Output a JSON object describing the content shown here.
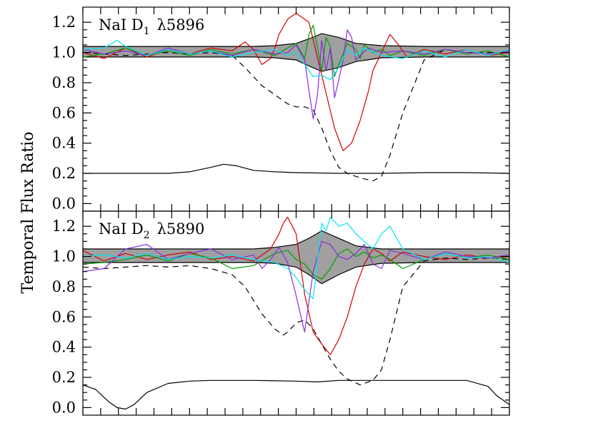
{
  "ylabel": "Temporal Flux Ratio",
  "chart_data": [
    {
      "type": "line",
      "title": "NaI D",
      "title_sub": "1",
      "title_wave": "λ5896",
      "xlim": [
        0,
        100
      ],
      "ylim": [
        -0.05,
        1.3
      ],
      "yticks": [
        0.0,
        0.2,
        0.4,
        0.6,
        0.8,
        1.0,
        1.2
      ],
      "ytick_labels": [
        "0.0",
        "0.2",
        "0.4",
        "0.6",
        "0.8",
        "1.0",
        "1.2"
      ],
      "xticks": [
        0,
        4.167,
        8.333,
        12.5,
        16.667,
        20.833,
        25,
        29.167,
        33.333,
        37.5,
        41.667,
        45.833,
        50,
        54.167,
        58.333,
        62.5,
        66.667,
        70.833,
        75,
        79.167,
        83.333,
        87.5,
        91.667,
        95.833,
        100
      ],
      "envelope": {
        "color": "#a0a0a0",
        "x": [
          0,
          10,
          20,
          30,
          40,
          45,
          50,
          53,
          56,
          60,
          64,
          70,
          80,
          90,
          100
        ],
        "upper": [
          1.04,
          1.04,
          1.04,
          1.04,
          1.04,
          1.045,
          1.06,
          1.09,
          1.125,
          1.1,
          1.06,
          1.045,
          1.04,
          1.04,
          1.04
        ],
        "lower": [
          0.97,
          0.97,
          0.97,
          0.97,
          0.97,
          0.965,
          0.95,
          0.91,
          0.875,
          0.9,
          0.94,
          0.965,
          0.97,
          0.97,
          0.97
        ]
      },
      "series": [
        {
          "color": "#000000",
          "dash": "dashed",
          "x": [
            0,
            5,
            10,
            15,
            20,
            25,
            30,
            35,
            38,
            42,
            45,
            48,
            50,
            52,
            54,
            56,
            58,
            60,
            62,
            65,
            68,
            70,
            72,
            75,
            80,
            85,
            90,
            95,
            100
          ],
          "y": [
            1.0,
            0.99,
            0.98,
            0.99,
            1.0,
            0.99,
            1.0,
            0.98,
            0.9,
            0.78,
            0.72,
            0.66,
            0.64,
            0.64,
            0.62,
            0.5,
            0.35,
            0.24,
            0.2,
            0.17,
            0.15,
            0.18,
            0.32,
            0.6,
            0.95,
            1.02,
            1.0,
            1.0,
            1.0
          ]
        },
        {
          "color": "#000000",
          "dash": "solid",
          "x": [
            0,
            10,
            20,
            25,
            30,
            33,
            36,
            40,
            45,
            50,
            60,
            70,
            80,
            90,
            100
          ],
          "y": [
            0.2,
            0.2,
            0.2,
            0.21,
            0.24,
            0.26,
            0.25,
            0.22,
            0.21,
            0.205,
            0.2,
            0.2,
            0.205,
            0.205,
            0.2
          ],
          "note": ""
        },
        {
          "color": "#d40000",
          "dash": "solid",
          "x": [
            0,
            5,
            10,
            15,
            20,
            25,
            30,
            35,
            38,
            40,
            42,
            44,
            45,
            46,
            48,
            50,
            53,
            56,
            59,
            61,
            63,
            65,
            67,
            68,
            70,
            72,
            74,
            76,
            80,
            85,
            90,
            95,
            100
          ],
          "y": [
            1.0,
            0.96,
            1.03,
            0.97,
            1.02,
            0.99,
            1.03,
            1.01,
            1.07,
            1.02,
            0.92,
            0.96,
            1.03,
            1.12,
            1.22,
            1.26,
            1.2,
            0.85,
            0.5,
            0.35,
            0.4,
            0.55,
            0.75,
            0.88,
            1.0,
            1.12,
            1.05,
            0.97,
            1.02,
            0.99,
            1.02,
            0.98,
            1.0
          ]
        },
        {
          "color": "#00a000",
          "dash": "solid",
          "x": [
            0,
            5,
            10,
            15,
            20,
            25,
            30,
            35,
            40,
            45,
            48,
            50,
            52,
            53,
            54,
            55,
            56,
            57,
            58,
            59,
            60,
            62,
            64,
            65,
            66,
            68,
            70,
            72,
            75,
            80,
            85,
            90,
            95,
            100
          ],
          "y": [
            0.97,
            0.99,
            1.03,
            0.98,
            1.01,
            0.98,
            1.02,
            0.99,
            1.02,
            0.98,
            1.03,
            1.06,
            0.96,
            1.12,
            1.18,
            1.03,
            0.88,
            1.1,
            1.04,
            0.84,
            0.92,
            1.06,
            1.02,
            0.96,
            1.05,
            1.0,
            1.02,
            0.98,
            1.01,
            0.98,
            1.02,
            0.99,
            1.01,
            0.97
          ]
        },
        {
          "color": "#8a2be2",
          "dash": "solid",
          "x": [
            0,
            5,
            10,
            15,
            20,
            25,
            30,
            35,
            40,
            45,
            48,
            50,
            52,
            53,
            54,
            55,
            56,
            57,
            58,
            59,
            60,
            61,
            62,
            63,
            64,
            65,
            67,
            70,
            75,
            80,
            85,
            90,
            95,
            100
          ],
          "y": [
            1.02,
            0.99,
            1.01,
            0.98,
            1.03,
            0.99,
            1.01,
            0.98,
            1.02,
            0.99,
            1.0,
            1.05,
            0.95,
            0.75,
            0.56,
            0.72,
            1.08,
            0.88,
            1.03,
            0.7,
            0.82,
            0.95,
            1.15,
            1.1,
            0.95,
            0.98,
            1.03,
            1.0,
            1.01,
            0.99,
            1.02,
            1.0,
            0.99,
            1.01
          ]
        },
        {
          "color": "#00e5ee",
          "dash": "solid",
          "x": [
            0,
            5,
            8,
            10,
            15,
            20,
            25,
            30,
            35,
            40,
            45,
            48,
            50,
            52,
            54,
            56,
            58,
            60,
            62,
            64,
            66,
            70,
            75,
            80,
            85,
            90,
            95,
            100
          ],
          "y": [
            1.02,
            1.03,
            1.08,
            1.04,
            0.98,
            1.02,
            0.99,
            1.01,
            0.97,
            1.0,
            1.02,
            0.98,
            1.0,
            0.92,
            0.84,
            0.85,
            0.82,
            0.9,
            1.02,
            0.98,
            1.03,
            0.98,
            0.96,
            1.01,
            0.97,
            1.02,
            0.98,
            1.02
          ]
        }
      ]
    },
    {
      "type": "line",
      "title": "NaI D",
      "title_sub": "2",
      "title_wave": "λ5890",
      "xlim": [
        0,
        100
      ],
      "ylim": [
        -0.05,
        1.3
      ],
      "yticks": [
        0.0,
        0.2,
        0.4,
        0.6,
        0.8,
        1.0,
        1.2
      ],
      "ytick_labels": [
        "0.0",
        "0.2",
        "0.4",
        "0.6",
        "0.8",
        "1.0",
        "1.2"
      ],
      "xticks": [
        0,
        4.167,
        8.333,
        12.5,
        16.667,
        20.833,
        25,
        29.167,
        33.333,
        37.5,
        41.667,
        45.833,
        50,
        54.167,
        58.333,
        62.5,
        66.667,
        70.833,
        75,
        79.167,
        83.333,
        87.5,
        91.667,
        95.833,
        100
      ],
      "envelope": {
        "color": "#a0a0a0",
        "x": [
          0,
          10,
          20,
          30,
          40,
          45,
          50,
          53,
          56,
          60,
          64,
          70,
          80,
          90,
          100
        ],
        "upper": [
          1.05,
          1.05,
          1.05,
          1.05,
          1.05,
          1.06,
          1.08,
          1.12,
          1.17,
          1.12,
          1.07,
          1.05,
          1.05,
          1.05,
          1.05
        ],
        "lower": [
          0.96,
          0.96,
          0.96,
          0.96,
          0.96,
          0.955,
          0.93,
          0.88,
          0.82,
          0.88,
          0.93,
          0.955,
          0.96,
          0.96,
          0.96
        ]
      },
      "series": [
        {
          "color": "#000000",
          "dash": "dashed",
          "x": [
            0,
            5,
            10,
            15,
            20,
            25,
            30,
            35,
            38,
            42,
            45,
            47,
            48,
            50,
            52,
            54,
            56,
            58,
            60,
            62,
            65,
            68,
            70,
            72,
            75,
            80,
            85,
            90,
            95,
            100
          ],
          "y": [
            0.93,
            0.92,
            0.93,
            0.94,
            0.93,
            0.94,
            0.92,
            0.88,
            0.8,
            0.62,
            0.52,
            0.48,
            0.5,
            0.56,
            0.58,
            0.52,
            0.42,
            0.32,
            0.24,
            0.19,
            0.15,
            0.18,
            0.25,
            0.45,
            0.8,
            0.97,
            0.99,
            0.98,
            0.99,
            0.98
          ]
        },
        {
          "color": "#000000",
          "dash": "solid",
          "x": [
            0,
            3,
            6,
            8,
            10,
            12,
            15,
            20,
            25,
            30,
            40,
            50,
            55,
            60,
            70,
            80,
            90,
            95,
            97,
            100
          ],
          "y": [
            0.15,
            0.12,
            0.04,
            0.0,
            -0.01,
            0.02,
            0.1,
            0.16,
            0.175,
            0.18,
            0.18,
            0.175,
            0.17,
            0.18,
            0.18,
            0.18,
            0.18,
            0.14,
            0.08,
            0.02
          ]
        },
        {
          "color": "#d40000",
          "dash": "solid",
          "x": [
            0,
            5,
            10,
            15,
            20,
            25,
            30,
            35,
            40,
            44,
            46,
            47,
            48,
            50,
            52,
            54,
            56,
            58,
            60,
            62,
            64,
            66,
            68,
            70,
            72,
            75,
            80,
            85,
            90,
            95,
            100
          ],
          "y": [
            1.04,
            0.97,
            1.02,
            0.98,
            1.01,
            1.03,
            0.98,
            1.0,
            0.97,
            1.05,
            1.15,
            1.22,
            1.26,
            1.15,
            0.75,
            0.5,
            0.42,
            0.35,
            0.45,
            0.6,
            0.8,
            0.95,
            1.05,
            1.02,
            0.97,
            1.03,
            1.0,
            0.98,
            1.01,
            0.99,
            1.0
          ]
        },
        {
          "color": "#00a000",
          "dash": "solid",
          "x": [
            0,
            5,
            10,
            15,
            20,
            25,
            30,
            35,
            40,
            45,
            48,
            50,
            52,
            54,
            56,
            58,
            60,
            62,
            64,
            66,
            68,
            70,
            72,
            75,
            80,
            85,
            90,
            95,
            100
          ],
          "y": [
            0.95,
            0.96,
            0.98,
            1.01,
            0.97,
            1.02,
            0.99,
            0.92,
            0.94,
            1.02,
            1.04,
            0.98,
            0.95,
            0.88,
            0.85,
            0.92,
            1.02,
            1.05,
            1.0,
            1.03,
            0.99,
            1.01,
            0.98,
            0.92,
            0.98,
            1.02,
            0.99,
            1.01,
            0.98
          ]
        },
        {
          "color": "#8a2be2",
          "dash": "solid",
          "x": [
            0,
            5,
            10,
            15,
            20,
            25,
            30,
            35,
            40,
            42,
            44,
            46,
            48,
            50,
            52,
            54,
            56,
            58,
            60,
            62,
            64,
            66,
            68,
            70,
            72,
            75,
            80,
            85,
            90,
            95,
            100
          ],
          "y": [
            0.9,
            0.92,
            1.05,
            1.08,
            0.98,
            1.02,
            1.05,
            0.98,
            1.01,
            0.92,
            0.98,
            1.06,
            0.96,
            0.74,
            0.5,
            0.9,
            1.1,
            1.08,
            1.0,
            0.98,
            1.02,
            1.08,
            0.95,
            0.92,
            1.04,
            1.02,
            0.98,
            1.03,
            1.0,
            0.99,
            1.01
          ]
        },
        {
          "color": "#00e5ee",
          "dash": "solid",
          "x": [
            0,
            5,
            10,
            15,
            20,
            25,
            30,
            35,
            40,
            45,
            48,
            50,
            52,
            54,
            55,
            56,
            57,
            58,
            60,
            62,
            64,
            66,
            68,
            70,
            72,
            75,
            80,
            85,
            90,
            95,
            100
          ],
          "y": [
            1.0,
            1.01,
            0.99,
            1.02,
            0.98,
            1.0,
            0.99,
            1.01,
            0.98,
            0.96,
            0.92,
            0.86,
            0.78,
            0.72,
            0.98,
            1.22,
            1.17,
            1.26,
            1.2,
            1.22,
            1.15,
            1.1,
            1.05,
            1.15,
            1.2,
            1.05,
            0.98,
            1.02,
            0.99,
            1.0,
            0.96
          ]
        }
      ]
    }
  ]
}
